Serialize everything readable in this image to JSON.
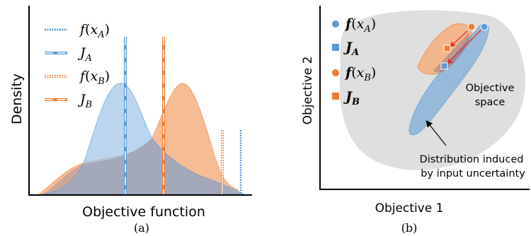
{
  "panel_a": {
    "caption": "(a)",
    "ylabel": "Density",
    "xlabel": "Objective function",
    "legend": [
      {
        "f": "f",
        "open": "(",
        "var": "x",
        "sub": "A",
        "close": ")"
      },
      {
        "f": "J",
        "sub": "A"
      },
      {
        "f": "f",
        "open": "(",
        "var": "x",
        "sub": "B",
        "close": ")"
      },
      {
        "f": "J",
        "sub": "B"
      }
    ]
  },
  "panel_b": {
    "caption": "(b)",
    "ylabel": "Objective 2",
    "xlabel": "Objective 1",
    "region_label_1": "Objective",
    "region_label_2": "space",
    "annotation_1": "Distribution induced",
    "annotation_2": "by input uncertainty",
    "legend": [
      {
        "f": "f",
        "open": "(",
        "var": "x",
        "sub": "A",
        "close": ")"
      },
      {
        "f": "J",
        "sub": "A"
      },
      {
        "f": "f",
        "open": "(",
        "var": "x",
        "sub": "B",
        "close": ")"
      },
      {
        "f": "J",
        "sub": "B"
      }
    ]
  },
  "colors": {
    "blue": "#5b9bd5",
    "orange": "#ed7d31",
    "blue_fill": "#9dc3e6",
    "orange_fill": "#f4b183",
    "gray_fill": "#d9d9d9",
    "axis": "#000000"
  }
}
